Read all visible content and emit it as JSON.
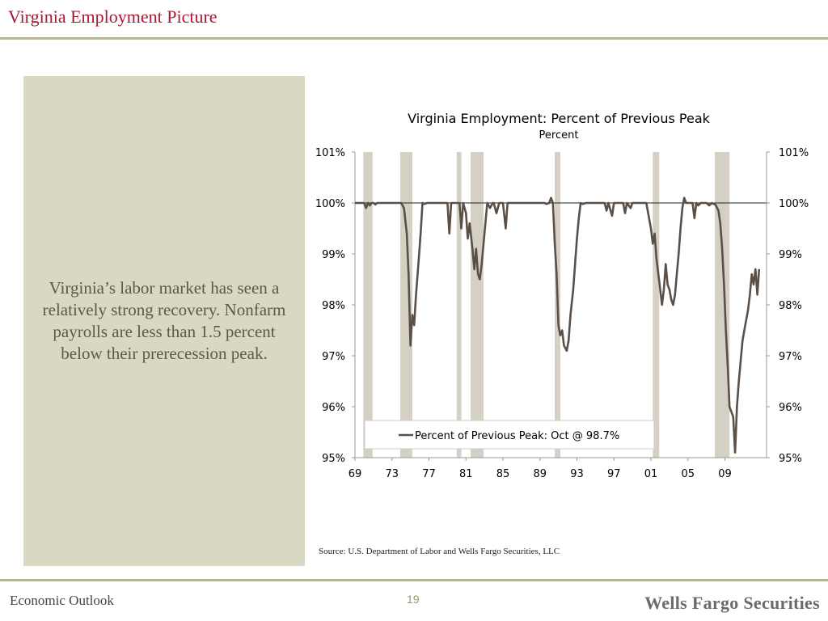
{
  "slide": {
    "title": "Virginia Employment Picture",
    "side_text": "Virginia’s labor market has seen a relatively strong recovery. Nonfarm payrolls are less than 1.5 percent below their prerecession peak.",
    "source": "Source: U.S. Department of Labor and Wells Fargo Securities, LLC",
    "footer_left": "Economic Outlook",
    "page_number": "19",
    "brand": "Wells Fargo Securities"
  },
  "chart_data": {
    "type": "line",
    "title": "Virginia Employment: Percent of Previous Peak",
    "subtitle": "Percent",
    "x_tick_labels": [
      "69",
      "73",
      "77",
      "81",
      "85",
      "89",
      "93",
      "97",
      "01",
      "05",
      "09"
    ],
    "x_tick_years": [
      1969,
      1973,
      1977,
      1981,
      1985,
      1989,
      1993,
      1997,
      2001,
      2005,
      2009
    ],
    "xlim": [
      1969,
      2013.5
    ],
    "ylim": [
      95,
      101
    ],
    "y_tick_labels": [
      "101%",
      "100%",
      "99%",
      "98%",
      "97%",
      "96%",
      "95%"
    ],
    "y_tick_values": [
      101,
      100,
      99,
      98,
      97,
      96,
      95
    ],
    "dual_y_axis": true,
    "reference_line": 100,
    "recessions": [
      [
        1969.9,
        1970.9
      ],
      [
        1973.9,
        1975.2
      ],
      [
        1980.0,
        1980.5
      ],
      [
        1981.5,
        1982.9
      ],
      [
        1990.6,
        1991.2
      ],
      [
        2001.2,
        2001.9
      ],
      [
        2007.9,
        2009.5
      ]
    ],
    "series": [
      {
        "name": "Percent of Previous Peak: Oct @ 98.7%",
        "color": "#5b5048",
        "points": [
          [
            1969.0,
            100
          ],
          [
            1970.0,
            100
          ],
          [
            1970.2,
            99.9
          ],
          [
            1970.4,
            100
          ],
          [
            1970.6,
            99.95
          ],
          [
            1970.8,
            100
          ],
          [
            1971.0,
            100
          ],
          [
            1971.2,
            99.97
          ],
          [
            1971.4,
            100
          ],
          [
            1974.0,
            100
          ],
          [
            1974.3,
            99.9
          ],
          [
            1974.6,
            99.4
          ],
          [
            1974.8,
            98.6
          ],
          [
            1975.0,
            97.2
          ],
          [
            1975.2,
            97.8
          ],
          [
            1975.4,
            97.6
          ],
          [
            1975.6,
            98.2
          ],
          [
            1975.9,
            98.9
          ],
          [
            1976.1,
            99.4
          ],
          [
            1976.3,
            100
          ],
          [
            1976.5,
            99.98
          ],
          [
            1976.8,
            100
          ],
          [
            1979.0,
            100
          ],
          [
            1979.2,
            99.4
          ],
          [
            1979.4,
            100
          ],
          [
            1980.0,
            100
          ],
          [
            1980.3,
            100
          ],
          [
            1980.5,
            99.5
          ],
          [
            1980.7,
            100
          ],
          [
            1981.0,
            99.8
          ],
          [
            1981.2,
            99.3
          ],
          [
            1981.4,
            99.6
          ],
          [
            1981.7,
            99.1
          ],
          [
            1981.9,
            98.7
          ],
          [
            1982.1,
            99.1
          ],
          [
            1982.3,
            98.6
          ],
          [
            1982.5,
            98.5
          ],
          [
            1982.7,
            98.8
          ],
          [
            1982.9,
            99.2
          ],
          [
            1983.1,
            99.6
          ],
          [
            1983.3,
            100
          ],
          [
            1983.6,
            99.9
          ],
          [
            1983.9,
            100
          ],
          [
            1984.0,
            100
          ],
          [
            1984.3,
            99.8
          ],
          [
            1984.6,
            100
          ],
          [
            1985.0,
            100
          ],
          [
            1985.3,
            99.5
          ],
          [
            1985.5,
            100
          ],
          [
            1989.0,
            100
          ],
          [
            1989.5,
            100
          ],
          [
            1989.7,
            99.98
          ],
          [
            1990.0,
            100
          ],
          [
            1990.2,
            100.1
          ],
          [
            1990.4,
            100
          ],
          [
            1990.6,
            99.2
          ],
          [
            1990.8,
            98.6
          ],
          [
            1991.0,
            97.6
          ],
          [
            1991.2,
            97.4
          ],
          [
            1991.4,
            97.5
          ],
          [
            1991.6,
            97.2
          ],
          [
            1991.9,
            97.1
          ],
          [
            1992.1,
            97.3
          ],
          [
            1992.3,
            97.8
          ],
          [
            1992.6,
            98.3
          ],
          [
            1992.8,
            98.8
          ],
          [
            1993.0,
            99.3
          ],
          [
            1993.2,
            99.7
          ],
          [
            1993.4,
            100
          ],
          [
            1993.6,
            99.98
          ],
          [
            1994.0,
            100
          ],
          [
            1996.0,
            100
          ],
          [
            1996.2,
            99.85
          ],
          [
            1996.4,
            100
          ],
          [
            1996.8,
            99.75
          ],
          [
            1997.0,
            100
          ],
          [
            1998.0,
            100
          ],
          [
            1998.2,
            99.8
          ],
          [
            1998.4,
            100
          ],
          [
            1998.8,
            99.9
          ],
          [
            1999.0,
            100
          ],
          [
            2000.0,
            100
          ],
          [
            2000.5,
            100
          ],
          [
            2001.0,
            99.5
          ],
          [
            2001.2,
            99.2
          ],
          [
            2001.4,
            99.4
          ],
          [
            2001.6,
            98.9
          ],
          [
            2001.8,
            98.6
          ],
          [
            2002.0,
            98.3
          ],
          [
            2002.2,
            98.0
          ],
          [
            2002.4,
            98.3
          ],
          [
            2002.6,
            98.8
          ],
          [
            2002.8,
            98.4
          ],
          [
            2003.0,
            98.3
          ],
          [
            2003.2,
            98.1
          ],
          [
            2003.4,
            98.0
          ],
          [
            2003.6,
            98.2
          ],
          [
            2003.8,
            98.6
          ],
          [
            2004.0,
            99.0
          ],
          [
            2004.2,
            99.5
          ],
          [
            2004.4,
            99.9
          ],
          [
            2004.6,
            100.1
          ],
          [
            2004.8,
            100
          ],
          [
            2005.0,
            100
          ],
          [
            2005.5,
            100
          ],
          [
            2005.7,
            99.7
          ],
          [
            2005.9,
            100
          ],
          [
            2006.1,
            99.95
          ],
          [
            2006.4,
            100
          ],
          [
            2007.0,
            100
          ],
          [
            2007.3,
            99.95
          ],
          [
            2007.6,
            100
          ],
          [
            2008.0,
            99.96
          ],
          [
            2008.3,
            99.85
          ],
          [
            2008.5,
            99.6
          ],
          [
            2008.7,
            99.1
          ],
          [
            2008.9,
            98.4
          ],
          [
            2009.1,
            97.5
          ],
          [
            2009.3,
            96.8
          ],
          [
            2009.5,
            96.0
          ],
          [
            2009.7,
            95.9
          ],
          [
            2009.9,
            95.8
          ],
          [
            2010.1,
            95.1
          ],
          [
            2010.3,
            96.0
          ],
          [
            2010.5,
            96.5
          ],
          [
            2010.7,
            96.9
          ],
          [
            2010.9,
            97.3
          ],
          [
            2011.1,
            97.5
          ],
          [
            2011.3,
            97.7
          ],
          [
            2011.5,
            97.9
          ],
          [
            2011.7,
            98.2
          ],
          [
            2011.9,
            98.6
          ],
          [
            2012.1,
            98.4
          ],
          [
            2012.3,
            98.7
          ],
          [
            2012.5,
            98.2
          ],
          [
            2012.7,
            98.7
          ]
        ]
      }
    ]
  }
}
